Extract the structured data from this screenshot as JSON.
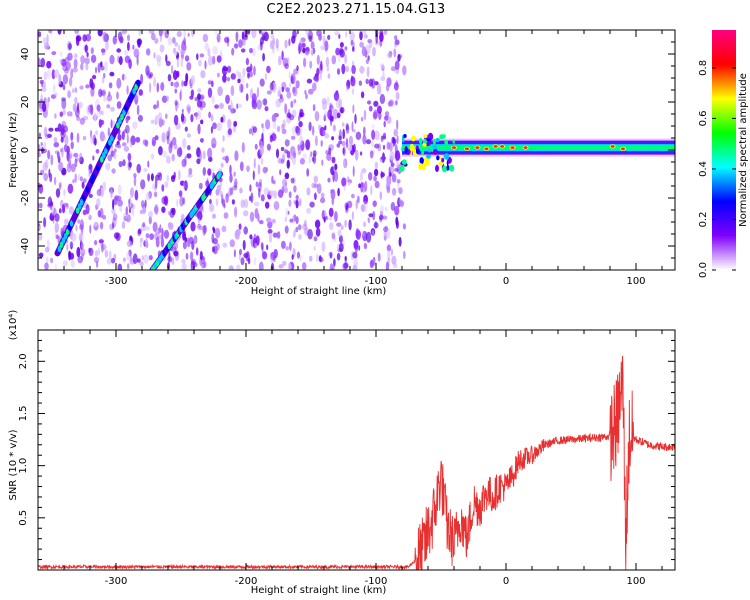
{
  "title": "C2E2.2023.271.15.04.G13",
  "chart_data": [
    {
      "type": "heatmap",
      "panel": "spectrogram",
      "xlabel": "Height of straight line (km)",
      "ylabel": "Frequency (Hz)",
      "xlim": [
        -360,
        130
      ],
      "ylim": [
        -50,
        50
      ],
      "x_ticks": [
        -300,
        -200,
        -100,
        0,
        100
      ],
      "y_ticks": [
        -40,
        -20,
        0,
        20,
        40
      ],
      "noise_region_x": [
        -360,
        -78
      ],
      "traces": [
        {
          "x_start": -345,
          "y_start": -43,
          "x_end": -283,
          "y_end": 28
        },
        {
          "x_start": -272,
          "y_start": -50,
          "x_end": -220,
          "y_end": -10
        },
        {
          "x_start": -80,
          "y_start": 1,
          "x_end": 130,
          "y_end": 1
        }
      ],
      "colorbar": {
        "label": "Normalized spectral amplitude",
        "range": [
          0.0,
          0.95
        ],
        "ticks": [
          0.0,
          0.2,
          0.4,
          0.6,
          0.8
        ],
        "colors": [
          "#ffffff",
          "#8000ff",
          "#0000ff",
          "#00ffff",
          "#00ff00",
          "#ffff00",
          "#ff0000",
          "#ff0080"
        ]
      }
    },
    {
      "type": "line",
      "panel": "snr",
      "xlabel": "Height of straight line (km)",
      "ylabel": "SNR (10 * v/v)",
      "multiplier": "(x10⁴)",
      "xlim": [
        -360,
        130
      ],
      "ylim": [
        0,
        2.3
      ],
      "x_ticks": [
        -300,
        -200,
        -100,
        0,
        100
      ],
      "y_ticks": [
        0.5,
        1.0,
        1.5,
        2.0
      ],
      "line_color": "#e83030",
      "series": [
        {
          "x": [
            -360,
            -300,
            -250,
            -200,
            -150,
            -100,
            -75,
            -65,
            -55,
            -50,
            -45,
            -40,
            -35,
            -30,
            -25,
            -20,
            -15,
            -10,
            -5,
            0,
            5,
            10,
            20,
            30,
            40,
            50,
            60,
            70,
            80,
            85,
            90,
            92,
            95,
            100,
            110,
            120,
            130
          ],
          "y": [
            0.03,
            0.03,
            0.03,
            0.03,
            0.03,
            0.03,
            0.03,
            0.15,
            0.55,
            0.9,
            0.4,
            0.25,
            0.5,
            0.3,
            0.65,
            0.6,
            0.75,
            0.7,
            0.8,
            0.8,
            0.9,
            1.05,
            1.1,
            1.2,
            1.24,
            1.25,
            1.26,
            1.27,
            1.28,
            1.4,
            1.8,
            0.3,
            1.3,
            1.25,
            1.2,
            1.18,
            1.18
          ]
        }
      ]
    }
  ]
}
